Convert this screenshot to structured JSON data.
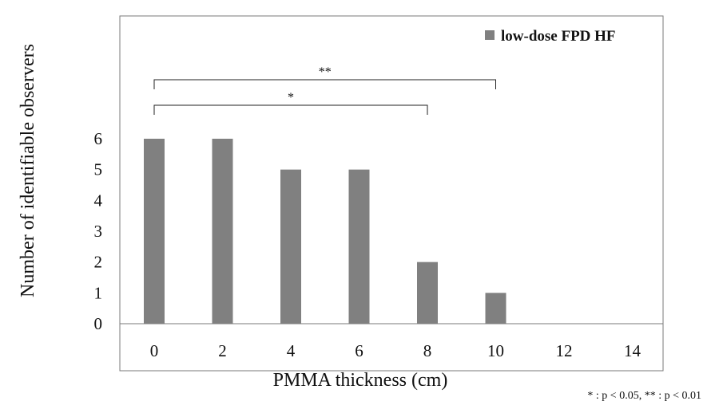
{
  "chart_data": {
    "type": "bar",
    "categories": [
      "0",
      "2",
      "4",
      "6",
      "8",
      "10",
      "12",
      "14"
    ],
    "series": [
      {
        "name": "low-dose FPD HF",
        "values": [
          6,
          6,
          5,
          5,
          2,
          1,
          0,
          0
        ],
        "color": "#808080"
      }
    ],
    "xlabel": "PMMA thickness (cm)",
    "ylabel": "Number of identifiable observers",
    "ylim": [
      0,
      6
    ],
    "yticks": [
      "0",
      "1",
      "2",
      "3",
      "4",
      "5",
      "6"
    ],
    "grid": false,
    "legend_position": "top-right",
    "significance": [
      {
        "from": "0",
        "to": "8",
        "label": "*"
      },
      {
        "from": "0",
        "to": "10",
        "label": "**"
      }
    ],
    "footnote": "* : p < 0.05, ** : p < 0.01"
  }
}
